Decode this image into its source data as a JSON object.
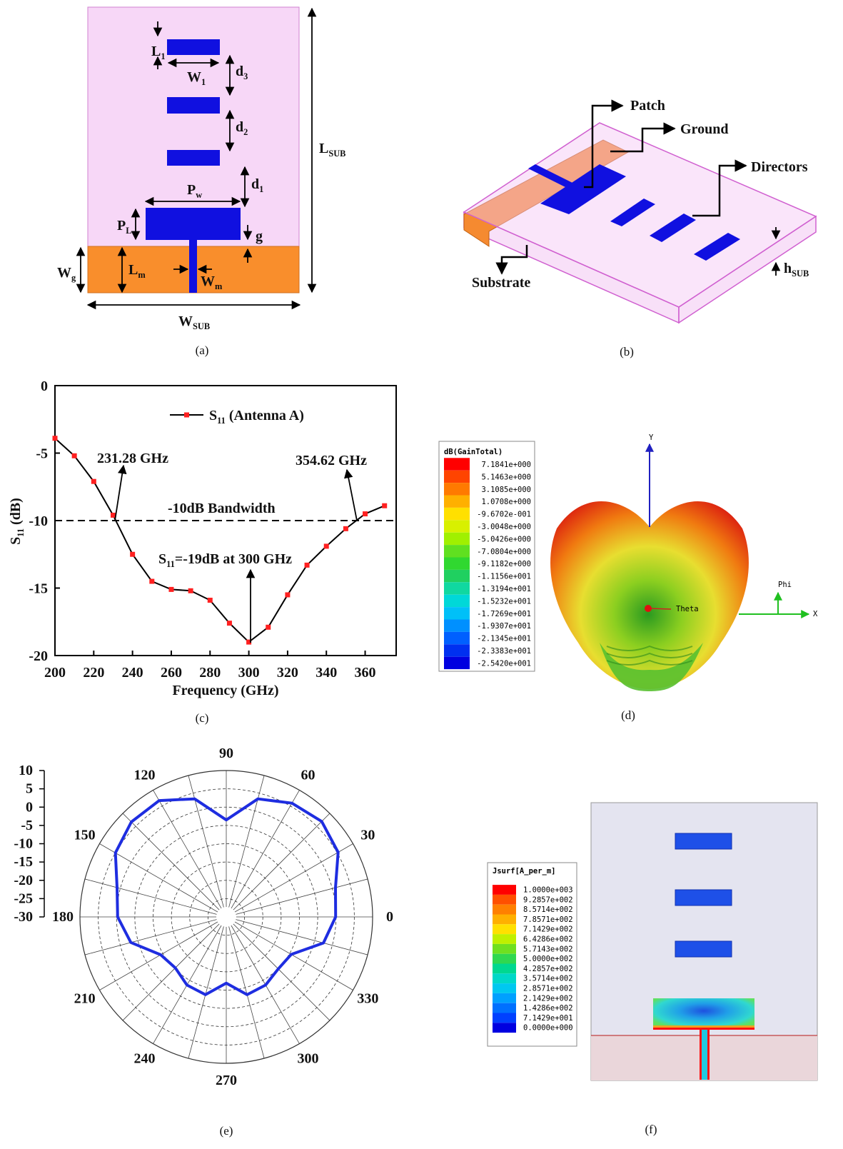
{
  "chart_data": [
    {
      "type": "line",
      "x": [
        200,
        210,
        220,
        230,
        240,
        250,
        260,
        270,
        280,
        290,
        300,
        310,
        320,
        330,
        340,
        350,
        360,
        370
      ],
      "series": [
        {
          "name": {
            "base": "S",
            "sub": "11",
            "rest": " (Antenna A)"
          },
          "color": "#000000",
          "marker_color": "#ff2020",
          "values": [
            -3.9,
            -5.2,
            -7.1,
            -9.6,
            -12.5,
            -14.5,
            -15.1,
            -15.2,
            -15.9,
            -17.6,
            -19.0,
            -17.9,
            -15.5,
            -13.3,
            -11.9,
            -10.6,
            -9.5,
            -8.9
          ]
        }
      ],
      "xlim": [
        200,
        376
      ],
      "ylim": [
        -20,
        0
      ],
      "xticks": [
        200,
        220,
        240,
        260,
        280,
        300,
        320,
        340,
        360
      ],
      "yticks": [
        0,
        -5,
        -10,
        -15,
        -20
      ],
      "x_label": "Frequency (GHz)",
      "y_label": {
        "base": "S",
        "sub": "11",
        "rest": " (dB)"
      },
      "reference_y": -10,
      "annotations": [
        "231.28 GHz",
        "354.62 GHz",
        "-10dB Bandwidth"
      ],
      "annotation_s11": {
        "base": "S",
        "sub": "11",
        "rest": "=-19dB at 300 GHz"
      }
    },
    {
      "type": "polar",
      "theta": [
        0,
        15,
        30,
        45,
        60,
        75,
        90,
        105,
        120,
        135,
        150,
        165,
        180,
        195,
        210,
        225,
        240,
        255,
        270,
        285,
        300,
        315,
        330,
        345
      ],
      "values": [
        -0.1,
        0.9,
        5.3,
        6.9,
        5.9,
        3.4,
        -3.5,
        3.4,
        6.7,
        6.7,
        5.0,
        0.9,
        -0.3,
        -3.0,
        -9.3,
        -10.3,
        -8.5,
        -8.0,
        -11.9,
        -8.0,
        -8.5,
        -9.9,
        -9.5,
        -2.5
      ],
      "color": "#1e2de0",
      "rlim": [
        -30,
        10
      ],
      "rticks": [
        10,
        5,
        0,
        -5,
        -10,
        -15,
        -20,
        -25,
        -30
      ],
      "thetaticks": [
        0,
        30,
        60,
        90,
        120,
        150,
        180,
        210,
        240,
        270,
        300,
        330
      ]
    }
  ],
  "figure_a": {
    "l1": {
      "base": "L",
      "sub": "1"
    },
    "w1": {
      "base": "W",
      "sub": "1"
    },
    "d3": {
      "base": "d",
      "sub": "3"
    },
    "d2": {
      "base": "d",
      "sub": "2"
    },
    "d1": {
      "base": "d",
      "sub": "1"
    },
    "pw": {
      "base": "P",
      "sub": "w"
    },
    "pl": {
      "base": "P",
      "sub": "L"
    },
    "g": {
      "base": "g"
    },
    "lm": {
      "base": "L",
      "sub": "m"
    },
    "wm": {
      "base": "W",
      "sub": "m"
    },
    "wg": {
      "base": "W",
      "sub": "g"
    },
    "lsub": {
      "base": "L",
      "sub": "SUB"
    },
    "wsub": {
      "base": "W",
      "sub": "SUB"
    }
  },
  "figure_b": {
    "patch": "Patch",
    "ground": "Ground",
    "directors": "Directors",
    "substrate": "Substrate",
    "hsub": {
      "base": "h",
      "sub": "SUB"
    }
  },
  "figure_d": {
    "legend_title": "dB(GainTotal)",
    "legend_values": [
      "7.1841e+000",
      "5.1463e+000",
      "3.1085e+000",
      "1.0708e+000",
      "-9.6702e-001",
      "-3.0048e+000",
      "-5.0426e+000",
      "-7.0804e+000",
      "-9.1182e+000",
      "-1.1156e+001",
      "-1.3194e+001",
      "-1.5232e+001",
      "-1.7269e+001",
      "-1.9307e+001",
      "-2.1345e+001",
      "-2.3383e+001",
      "-2.5420e+001"
    ],
    "legend_colors": [
      "#ff0000",
      "#ff4400",
      "#ff7a00",
      "#ffb000",
      "#ffe000",
      "#d8f000",
      "#a0f000",
      "#60e020",
      "#30d830",
      "#20d060",
      "#10d8a0",
      "#00d8d8",
      "#00c0f8",
      "#0090ff",
      "#0060ff",
      "#0030f0",
      "#0000e0"
    ],
    "axis_labels": {
      "y": "Y",
      "x": "X",
      "phi": "Phi",
      "theta": "Theta"
    }
  },
  "figure_f": {
    "legend_title": "Jsurf[A_per_m]",
    "legend_values": [
      "1.0000e+003",
      "9.2857e+002",
      "8.5714e+002",
      "7.8571e+002",
      "7.1429e+002",
      "6.4286e+002",
      "5.7143e+002",
      "5.0000e+002",
      "4.2857e+002",
      "3.5714e+002",
      "2.8571e+002",
      "2.1429e+002",
      "1.4286e+002",
      "7.1429e+001",
      "0.0000e+000"
    ],
    "legend_colors": [
      "#ff0000",
      "#ff5000",
      "#ff8000",
      "#ffb000",
      "#ffe000",
      "#c0f000",
      "#70e020",
      "#30d850",
      "#00d890",
      "#00d8c8",
      "#00c8f0",
      "#00a0ff",
      "#0070ff",
      "#0040ff",
      "#0000e0"
    ]
  },
  "captions": [
    "(a)",
    "(b)",
    "(c)",
    "(d)",
    "(e)",
    "(f)"
  ]
}
